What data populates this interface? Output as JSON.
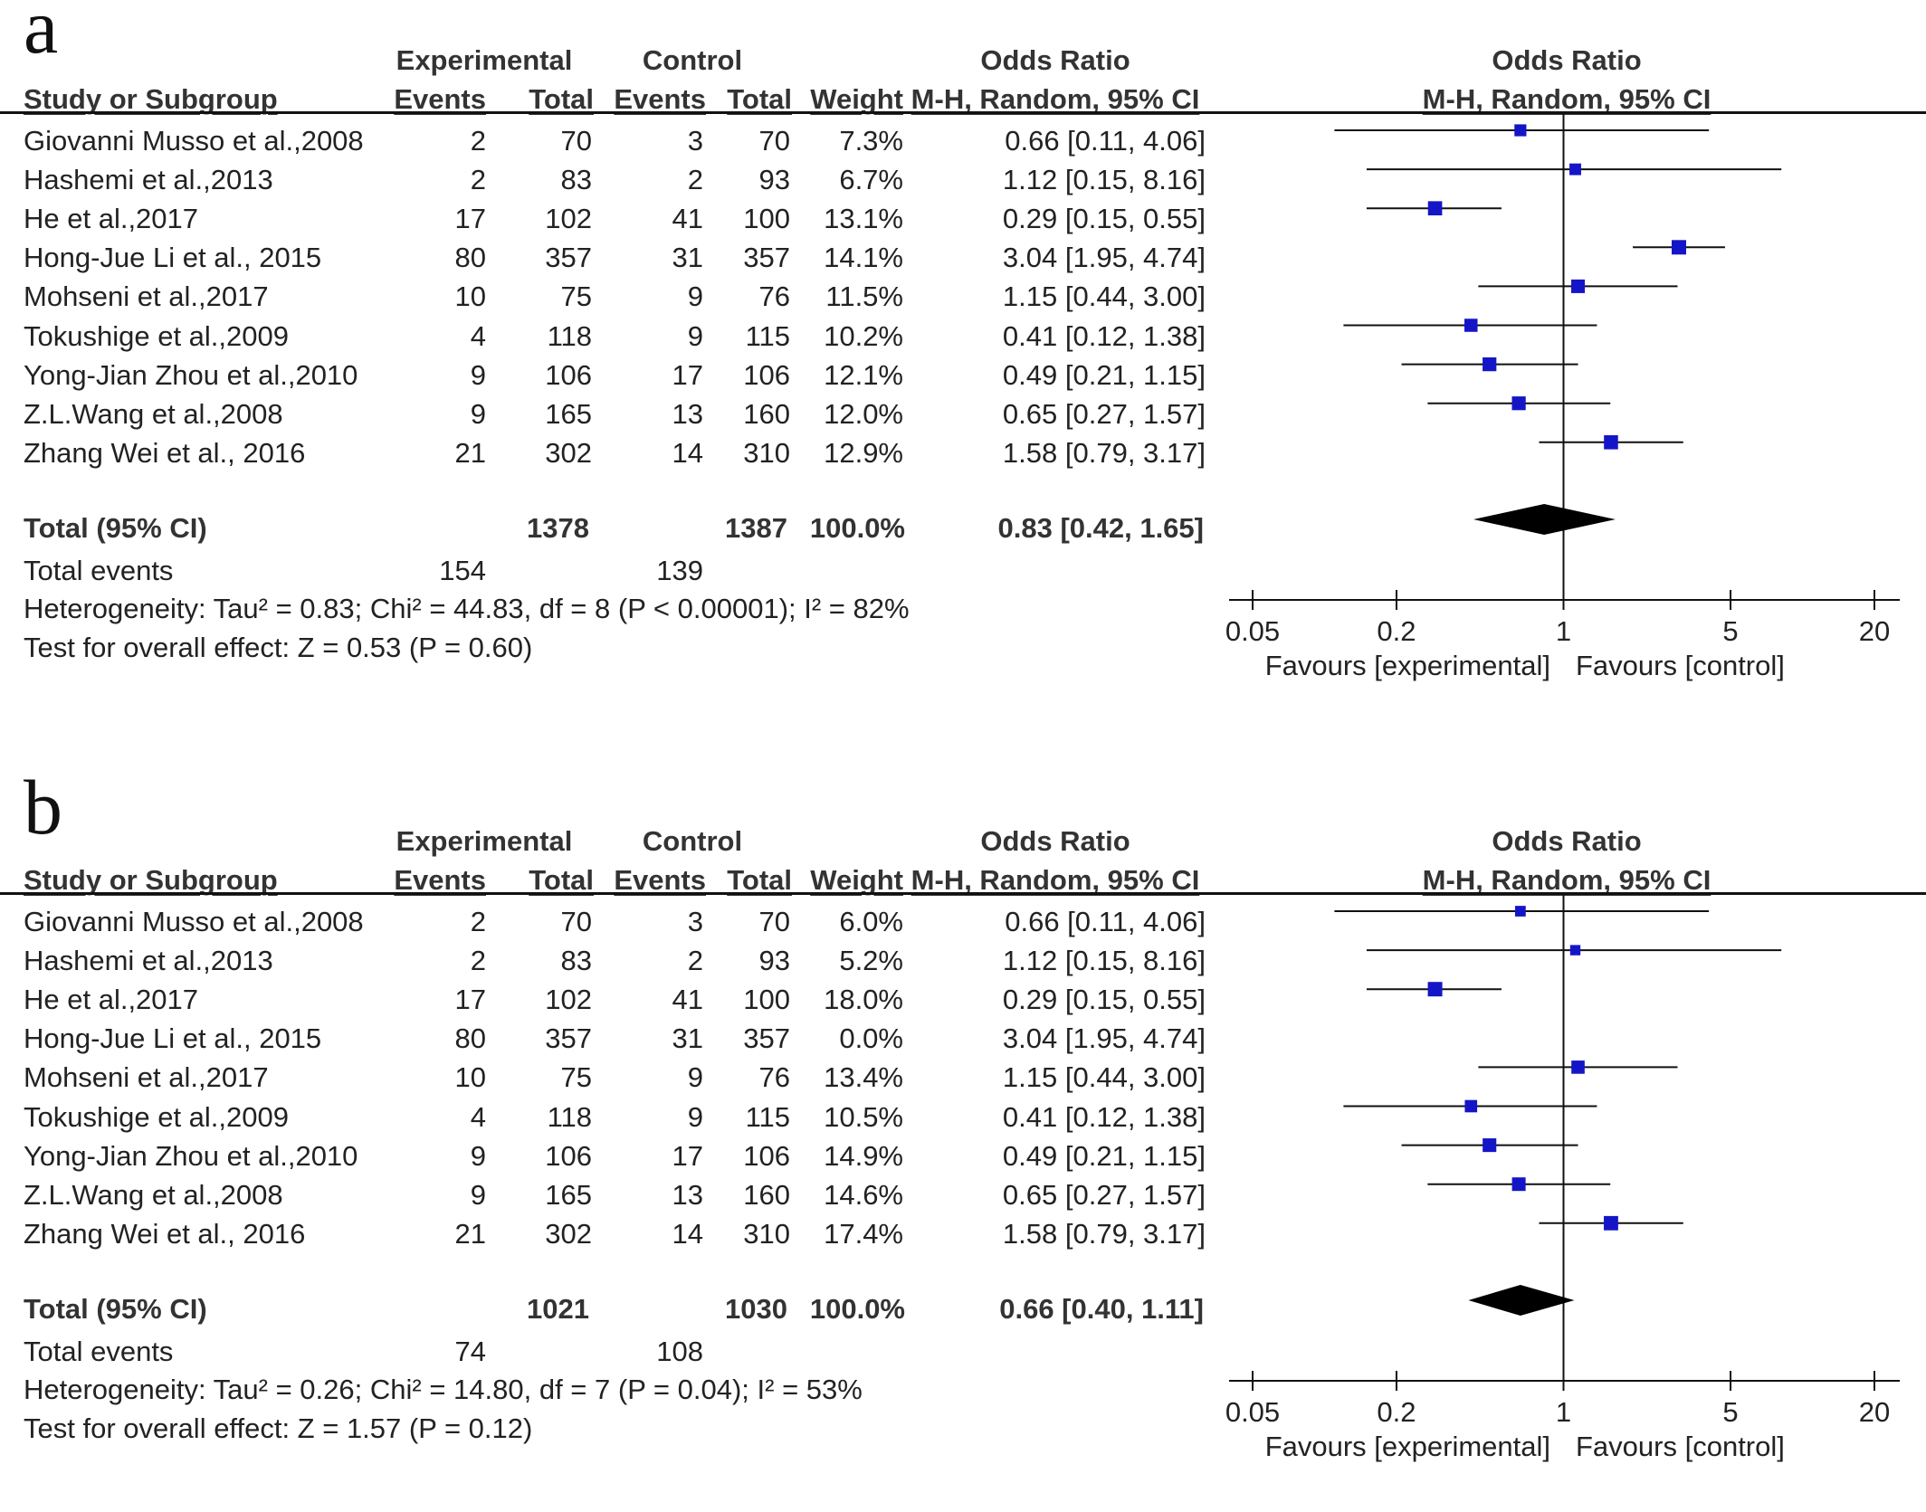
{
  "chart_data": [
    {
      "type": "forest",
      "panel_label": "a",
      "column_group_headers": {
        "experimental": "Experimental",
        "control": "Control",
        "odds_ratio": "Odds Ratio",
        "plot": "Odds Ratio"
      },
      "column_headers": {
        "study": "Study or Subgroup",
        "exp_events": "Events",
        "exp_total": "Total",
        "ctl_events": "Events",
        "ctl_total": "Total",
        "weight": "Weight",
        "or_method": "M-H, Random, 95% CI",
        "plot_method": "M-H, Random, 95% CI"
      },
      "studies": [
        {
          "name": "Giovanni Musso et al.,2008",
          "exp_events": "2",
          "exp_total": "70",
          "ctl_events": "3",
          "ctl_total": "70",
          "weight": "7.3%",
          "or_text": "0.66 [0.11, 4.06]",
          "or": 0.66,
          "lo": 0.11,
          "hi": 4.06
        },
        {
          "name": "Hashemi et al.,2013",
          "exp_events": "2",
          "exp_total": "83",
          "ctl_events": "2",
          "ctl_total": "93",
          "weight": "6.7%",
          "or_text": "1.12 [0.15, 8.16]",
          "or": 1.12,
          "lo": 0.15,
          "hi": 8.16
        },
        {
          "name": "He et al.,2017",
          "exp_events": "17",
          "exp_total": "102",
          "ctl_events": "41",
          "ctl_total": "100",
          "weight": "13.1%",
          "or_text": "0.29 [0.15, 0.55]",
          "or": 0.29,
          "lo": 0.15,
          "hi": 0.55
        },
        {
          "name": "Hong-Jue Li et al., 2015",
          "exp_events": "80",
          "exp_total": "357",
          "ctl_events": "31",
          "ctl_total": "357",
          "weight": "14.1%",
          "or_text": "3.04 [1.95, 4.74]",
          "or": 3.04,
          "lo": 1.95,
          "hi": 4.74
        },
        {
          "name": "Mohseni et al.,2017",
          "exp_events": "10",
          "exp_total": "75",
          "ctl_events": "9",
          "ctl_total": "76",
          "weight": "11.5%",
          "or_text": "1.15 [0.44, 3.00]",
          "or": 1.15,
          "lo": 0.44,
          "hi": 3.0
        },
        {
          "name": "Tokushige et al.,2009",
          "exp_events": "4",
          "exp_total": "118",
          "ctl_events": "9",
          "ctl_total": "115",
          "weight": "10.2%",
          "or_text": "0.41 [0.12, 1.38]",
          "or": 0.41,
          "lo": 0.12,
          "hi": 1.38
        },
        {
          "name": "Yong-Jian Zhou et al.,2010",
          "exp_events": "9",
          "exp_total": "106",
          "ctl_events": "17",
          "ctl_total": "106",
          "weight": "12.1%",
          "or_text": "0.49 [0.21, 1.15]",
          "or": 0.49,
          "lo": 0.21,
          "hi": 1.15
        },
        {
          "name": "Z.L.Wang et al.,2008",
          "exp_events": "9",
          "exp_total": "165",
          "ctl_events": "13",
          "ctl_total": "160",
          "weight": "12.0%",
          "or_text": "0.65 [0.27, 1.57]",
          "or": 0.65,
          "lo": 0.27,
          "hi": 1.57
        },
        {
          "name": "Zhang Wei et al., 2016",
          "exp_events": "21",
          "exp_total": "302",
          "ctl_events": "14",
          "ctl_total": "310",
          "weight": "12.9%",
          "or_text": "1.58 [0.79, 3.17]",
          "or": 1.58,
          "lo": 0.79,
          "hi": 3.17
        }
      ],
      "total": {
        "label": "Total (95% CI)",
        "exp_total": "1378",
        "ctl_total": "1387",
        "weight": "100.0%",
        "or_text": "0.83 [0.42, 1.65]",
        "or": 0.83,
        "lo": 0.42,
        "hi": 1.65
      },
      "total_events": {
        "label": "Total events",
        "exp": "154",
        "ctl": "139"
      },
      "heterogeneity": "Heterogeneity: Tau² = 0.83; Chi² = 44.83, df = 8 (P < 0.00001); I² = 82%",
      "overall_effect": "Test for overall effect: Z = 0.53 (P = 0.60)",
      "x_scale": "log",
      "x_ticks": [
        0.05,
        0.2,
        1,
        5,
        20
      ],
      "x_tick_labels": [
        "0.05",
        "0.2",
        "1",
        "5",
        "20"
      ],
      "xlim": [
        0.05,
        20
      ],
      "favours_left": "Favours [experimental]",
      "favours_right": "Favours [control]",
      "colors": {
        "marker": "#1515c8",
        "line": "#111111",
        "diamond": "#000000"
      }
    },
    {
      "type": "forest",
      "panel_label": "b",
      "column_group_headers": {
        "experimental": "Experimental",
        "control": "Control",
        "odds_ratio": "Odds Ratio",
        "plot": "Odds Ratio"
      },
      "column_headers": {
        "study": "Study or Subgroup",
        "exp_events": "Events",
        "exp_total": "Total",
        "ctl_events": "Events",
        "ctl_total": "Total",
        "weight": "Weight",
        "or_method": "M-H, Random, 95% CI",
        "plot_method": "M-H, Random, 95% CI"
      },
      "studies": [
        {
          "name": "Giovanni Musso et al.,2008",
          "exp_events": "2",
          "exp_total": "70",
          "ctl_events": "3",
          "ctl_total": "70",
          "weight": "6.0%",
          "or_text": "0.66 [0.11, 4.06]",
          "or": 0.66,
          "lo": 0.11,
          "hi": 4.06
        },
        {
          "name": "Hashemi et al.,2013",
          "exp_events": "2",
          "exp_total": "83",
          "ctl_events": "2",
          "ctl_total": "93",
          "weight": "5.2%",
          "or_text": "1.12 [0.15, 8.16]",
          "or": 1.12,
          "lo": 0.15,
          "hi": 8.16
        },
        {
          "name": "He et al.,2017",
          "exp_events": "17",
          "exp_total": "102",
          "ctl_events": "41",
          "ctl_total": "100",
          "weight": "18.0%",
          "or_text": "0.29 [0.15, 0.55]",
          "or": 0.29,
          "lo": 0.15,
          "hi": 0.55
        },
        {
          "name": "Hong-Jue Li et al., 2015",
          "exp_events": "80",
          "exp_total": "357",
          "ctl_events": "31",
          "ctl_total": "357",
          "weight": "0.0%",
          "or_text": "3.04 [1.95, 4.74]",
          "or": 3.04,
          "lo": 1.95,
          "hi": 4.74,
          "excluded": true
        },
        {
          "name": "Mohseni et al.,2017",
          "exp_events": "10",
          "exp_total": "75",
          "ctl_events": "9",
          "ctl_total": "76",
          "weight": "13.4%",
          "or_text": "1.15 [0.44, 3.00]",
          "or": 1.15,
          "lo": 0.44,
          "hi": 3.0
        },
        {
          "name": "Tokushige et al.,2009",
          "exp_events": "4",
          "exp_total": "118",
          "ctl_events": "9",
          "ctl_total": "115",
          "weight": "10.5%",
          "or_text": "0.41 [0.12, 1.38]",
          "or": 0.41,
          "lo": 0.12,
          "hi": 1.38
        },
        {
          "name": "Yong-Jian Zhou et al.,2010",
          "exp_events": "9",
          "exp_total": "106",
          "ctl_events": "17",
          "ctl_total": "106",
          "weight": "14.9%",
          "or_text": "0.49 [0.21, 1.15]",
          "or": 0.49,
          "lo": 0.21,
          "hi": 1.15
        },
        {
          "name": "Z.L.Wang et al.,2008",
          "exp_events": "9",
          "exp_total": "165",
          "ctl_events": "13",
          "ctl_total": "160",
          "weight": "14.6%",
          "or_text": "0.65 [0.27, 1.57]",
          "or": 0.65,
          "lo": 0.27,
          "hi": 1.57
        },
        {
          "name": "Zhang Wei et al., 2016",
          "exp_events": "21",
          "exp_total": "302",
          "ctl_events": "14",
          "ctl_total": "310",
          "weight": "17.4%",
          "or_text": "1.58 [0.79, 3.17]",
          "or": 1.58,
          "lo": 0.79,
          "hi": 3.17
        }
      ],
      "total": {
        "label": "Total (95% CI)",
        "exp_total": "1021",
        "ctl_total": "1030",
        "weight": "100.0%",
        "or_text": "0.66 [0.40, 1.11]",
        "or": 0.66,
        "lo": 0.4,
        "hi": 1.11
      },
      "total_events": {
        "label": "Total events",
        "exp": "74",
        "ctl": "108"
      },
      "heterogeneity": "Heterogeneity: Tau² = 0.26; Chi² = 14.80, df = 7 (P = 0.04); I² = 53%",
      "overall_effect": "Test for overall effect: Z = 1.57 (P = 0.12)",
      "x_scale": "log",
      "x_ticks": [
        0.05,
        0.2,
        1,
        5,
        20
      ],
      "x_tick_labels": [
        "0.05",
        "0.2",
        "1",
        "5",
        "20"
      ],
      "xlim": [
        0.05,
        20
      ],
      "favours_left": "Favours [experimental]",
      "favours_right": "Favours [control]",
      "colors": {
        "marker": "#1515c8",
        "line": "#111111",
        "diamond": "#000000"
      }
    }
  ]
}
